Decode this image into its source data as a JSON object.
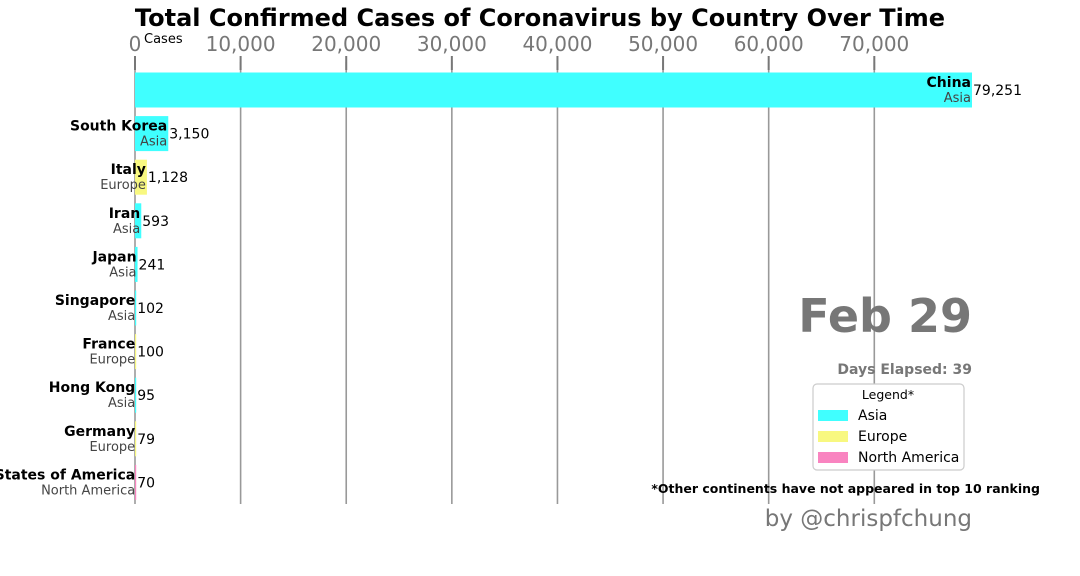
{
  "chart_data": {
    "type": "bar",
    "orientation": "horizontal",
    "title": "Total Confirmed Cases of Coronavirus by Country Over Time",
    "xlabel": "Cases",
    "xlim": [
      0,
      79251
    ],
    "xticks": [
      0,
      10000,
      20000,
      30000,
      40000,
      50000,
      60000,
      70000
    ],
    "xtick_labels": [
      "0",
      "10,000",
      "20,000",
      "30,000",
      "40,000",
      "50,000",
      "60,000",
      "70,000"
    ],
    "grid": true,
    "rows": [
      {
        "country": "China",
        "continent": "Asia",
        "value": 79251,
        "value_label": "79,251"
      },
      {
        "country": "South Korea",
        "continent": "Asia",
        "value": 3150,
        "value_label": "3,150"
      },
      {
        "country": "Italy",
        "continent": "Europe",
        "value": 1128,
        "value_label": "1,128"
      },
      {
        "country": "Iran",
        "continent": "Asia",
        "value": 593,
        "value_label": "593"
      },
      {
        "country": "Japan",
        "continent": "Asia",
        "value": 241,
        "value_label": "241"
      },
      {
        "country": "Singapore",
        "continent": "Asia",
        "value": 102,
        "value_label": "102"
      },
      {
        "country": "France",
        "continent": "Europe",
        "value": 100,
        "value_label": "100"
      },
      {
        "country": "Hong Kong",
        "continent": "Asia",
        "value": 95,
        "value_label": "95"
      },
      {
        "country": "Germany",
        "continent": "Europe",
        "value": 79,
        "value_label": "79"
      },
      {
        "country": "United States of America",
        "continent": "North America",
        "value": 70,
        "value_label": "70"
      }
    ],
    "continent_colors": {
      "Asia": "#40ffff",
      "Europe": "#f8f880",
      "North America": "#f984c0"
    },
    "date_label": "Feb 29",
    "days_elapsed_label": "Days Elapsed: 39",
    "legend": {
      "title": "Legend*",
      "position": "lower-right",
      "entries": [
        "Asia",
        "Europe",
        "North America"
      ]
    },
    "footnote": "*Other continents have not appeared in top 10 ranking",
    "credit": "by @chrispfchung"
  }
}
